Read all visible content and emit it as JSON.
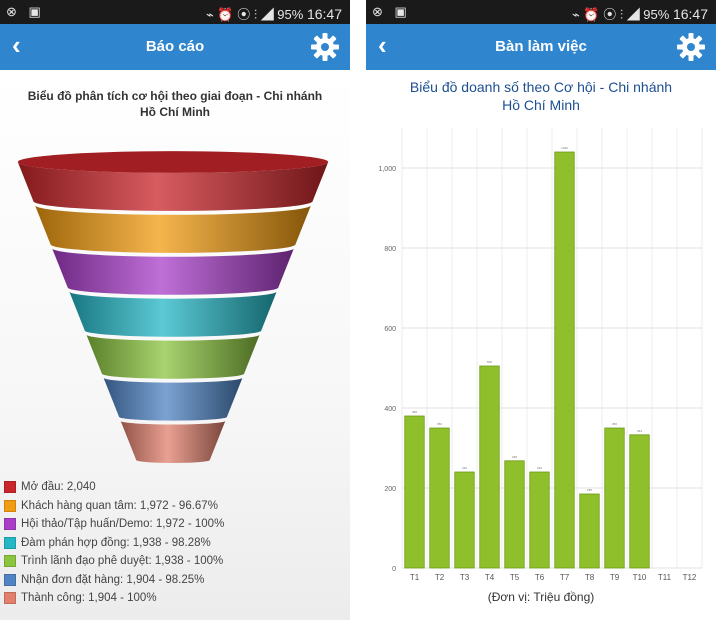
{
  "screens": [
    {
      "status_left": "⊗ ▣",
      "status_right": "⌁ ⏰ ⦿ ⫶ ◢ 95%",
      "time": "16:47",
      "header_title": "Báo cáo",
      "chart_title_line1": "Biểu đồ phân tích cơ hội theo giai đoạn - Chi nhánh",
      "chart_title_line2": "Hồ Chí Minh",
      "legend": [
        {
          "label": "Mở đầu: 2,040",
          "color": "#c9262b"
        },
        {
          "label": "Khách hàng quan tâm: 1,972 - 96.67%",
          "color": "#f29c11"
        },
        {
          "label": "Hội thảo/Tập huấn/Demo: 1,972 - 100%",
          "color": "#a93fc9"
        },
        {
          "label": "Đàm phán hợp đồng: 1,938 - 98.28%",
          "color": "#25b7c6"
        },
        {
          "label": "Trình lãnh đạo phê duyệt: 1,938 - 100%",
          "color": "#8bc43f"
        },
        {
          "label": "Nhận đơn đặt hàng: 1,904 - 98.25%",
          "color": "#4f83c3"
        },
        {
          "label": "Thành công: 1,904 - 100%",
          "color": "#e0806d"
        }
      ]
    },
    {
      "status_left": "⊗ ▣",
      "status_right": "⌁ ⏰ ⦿ ⫶ ◢ 95%",
      "time": "16:47",
      "header_title": "Bàn làm việc",
      "chart_title_line1": "Biểu đồ doanh số theo Cơ hội - Chi nhánh",
      "chart_title_line2": "Hồ Chí Minh",
      "x_unit": "(Đơn vị: Triệu đồng)"
    }
  ],
  "colors": {
    "appbar": "#2f86cf",
    "bar": "#8fbf2b",
    "bar_border": "#6e9a18"
  },
  "chart_data": [
    {
      "type": "funnel",
      "title": "Biểu đồ phân tích cơ hội theo giai đoạn - Chi nhánh Hồ Chí Minh",
      "categories": [
        "Mở đầu",
        "Khách hàng quan tâm",
        "Hội thảo/Tập huấn/Demo",
        "Đàm phán hợp đồng",
        "Trình lãnh đạo phê duyệt",
        "Nhận đơn đặt hàng",
        "Thành công"
      ],
      "values": [
        2040,
        1972,
        1972,
        1938,
        1938,
        1904,
        1904
      ]
    },
    {
      "type": "bar",
      "title": "Biểu đồ doanh số theo Cơ hội - Chi nhánh Hồ Chí Minh",
      "categories": [
        "T1",
        "T2",
        "T3",
        "T4",
        "T5",
        "T6",
        "T7",
        "T8",
        "T9",
        "T10",
        "T11",
        "T12"
      ],
      "values": [
        380,
        350,
        240,
        505,
        268,
        240,
        1040,
        185,
        350,
        333,
        0,
        0
      ],
      "ylim": [
        0,
        1100
      ],
      "yticks": [
        "0",
        "200",
        "400",
        "600",
        "800",
        "1,000"
      ],
      "ytick_values": [
        0,
        200,
        400,
        600,
        800,
        1000
      ],
      "grid": true,
      "xlabel": "(Đơn vị: Triệu đồng)"
    }
  ]
}
